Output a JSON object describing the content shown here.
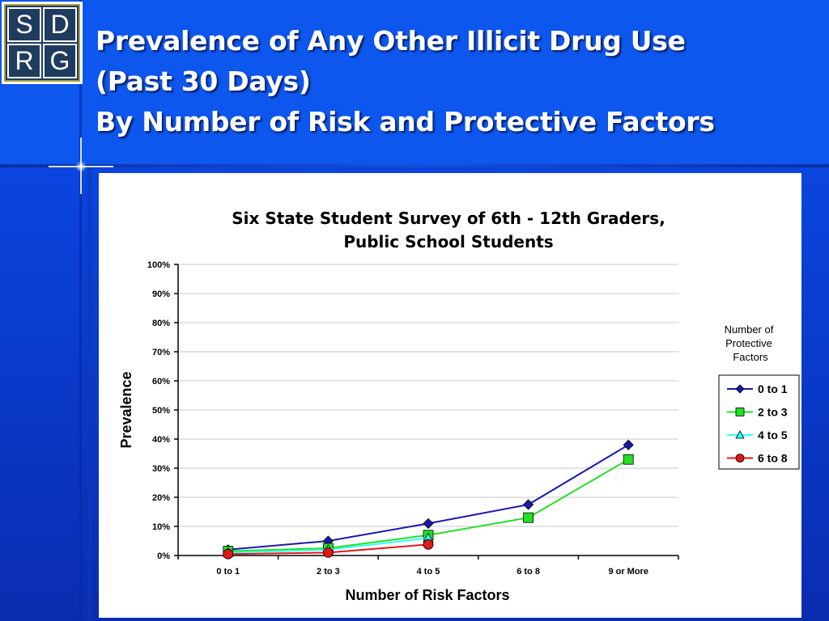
{
  "slide": {
    "title_lines": [
      "Prevalence of Any Other Illicit Drug Use",
      "(Past 30 Days)",
      "By Number of Risk and Protective Factors"
    ],
    "logo_letters": [
      "S",
      "D",
      "R",
      "G"
    ]
  },
  "colors": {
    "background": "#0a3fd6",
    "series_0_to_1": "#1a1aa8",
    "series_2_to_3": "#22e022",
    "series_4_to_5": "#33ffff",
    "series_6_to_8": "#e01818"
  },
  "chart_data": {
    "type": "line",
    "title": "Six State Student Survey of 6th - 12th Graders,",
    "subtitle": "Public School Students",
    "xlabel": "Number of Risk Factors",
    "ylabel": "Prevalence",
    "categories": [
      "0 to 1",
      "2 to 3",
      "4 to 5",
      "6 to 8",
      "9 or More"
    ],
    "y_ticks": [
      "0%",
      "10%",
      "20%",
      "30%",
      "40%",
      "50%",
      "60%",
      "70%",
      "80%",
      "90%",
      "100%"
    ],
    "ylim": [
      0,
      100
    ],
    "grid": true,
    "legend_title": [
      "Number of",
      "Protective",
      "Factors"
    ],
    "legend_position": "right",
    "series": [
      {
        "name": "0 to 1",
        "marker": "diamond",
        "color": "#1a1aa8",
        "values": [
          2,
          5,
          11,
          17.5,
          38
        ]
      },
      {
        "name": "2 to 3",
        "marker": "square",
        "color": "#22e022",
        "values": [
          1.5,
          2.5,
          7,
          13,
          33
        ]
      },
      {
        "name": "4 to 5",
        "marker": "triangle",
        "color": "#33ffff",
        "values": [
          1,
          2,
          6,
          null,
          null
        ]
      },
      {
        "name": "6 to 8",
        "marker": "circle",
        "color": "#e01818",
        "values": [
          0.5,
          1,
          3.8,
          null,
          null
        ]
      }
    ]
  }
}
